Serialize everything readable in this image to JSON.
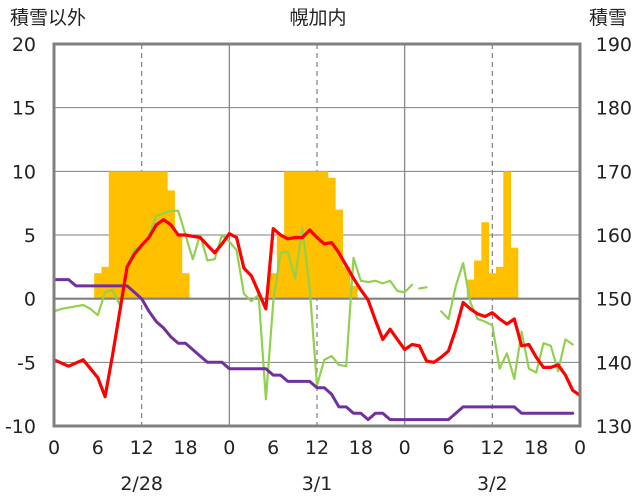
{
  "chart_data": {
    "type": "bar+line",
    "title": "幌加内",
    "ylabel_left": "積雪以外",
    "ylabel_right": "積雪",
    "y_left_range": [
      -10,
      20
    ],
    "y_left_ticks": [
      "20",
      "15",
      "10",
      "5",
      "0",
      "-5",
      "-10"
    ],
    "y_right_range": [
      130,
      190
    ],
    "y_right_ticks": [
      "190",
      "180",
      "170",
      "160",
      "150",
      "140",
      "130"
    ],
    "x_range_hours": [
      0,
      72
    ],
    "x_tick_labels": [
      "0",
      "6",
      "12",
      "18",
      "0",
      "6",
      "12",
      "18",
      "0",
      "6",
      "12",
      "18",
      "0"
    ],
    "date_labels": [
      "2/28",
      "3/1",
      "3/2"
    ],
    "grid": true,
    "colors": {
      "snow_depth_bar": "#FFC000",
      "temperature_line": "#FF0000",
      "green_line": "#92D050",
      "purple_line": "#7030A0",
      "axis": "#808080",
      "grid": "#808080"
    },
    "snow_depth_bars": {
      "x": [
        6,
        7,
        8,
        9,
        10,
        11,
        12,
        13,
        14,
        15,
        16,
        17,
        18,
        30,
        31,
        32,
        33,
        34,
        35,
        36,
        37,
        38,
        39,
        40,
        41,
        57,
        58,
        59,
        60,
        61,
        62,
        63
      ],
      "values": [
        154,
        155,
        170,
        170,
        170,
        170,
        170,
        170,
        170,
        170,
        167,
        160,
        154,
        154,
        160,
        170,
        170,
        170,
        170,
        170,
        170,
        169,
        164,
        155,
        152,
        153,
        156,
        162,
        154,
        155,
        170,
        158
      ]
    },
    "temperature": {
      "x": [
        0,
        2,
        4,
        5,
        6,
        7,
        8,
        9,
        10,
        11,
        12,
        13,
        14,
        15,
        16,
        17,
        18,
        19,
        20,
        21,
        22,
        23,
        24,
        25,
        26,
        27,
        28,
        29,
        30,
        31,
        32,
        33,
        34,
        35,
        36,
        37,
        38,
        39,
        40,
        41,
        42,
        43,
        44,
        45,
        46,
        47,
        48,
        49,
        50,
        51,
        52,
        53,
        54,
        55,
        56,
        57,
        58,
        59,
        60,
        61,
        62,
        63,
        64,
        65,
        66,
        67,
        68,
        69,
        70,
        71,
        72
      ],
      "values": [
        -4.8,
        -5.3,
        -4.8,
        -5.5,
        -6.2,
        -7.7,
        -4.5,
        -1,
        2.5,
        3.5,
        4.2,
        4.8,
        5.8,
        6.2,
        5.8,
        5,
        5,
        4.9,
        4.8,
        4.2,
        3.6,
        4.3,
        5.1,
        4.8,
        2.4,
        1.8,
        0.5,
        -0.8,
        5.5,
        5,
        4.7,
        4.8,
        4.8,
        5.4,
        4.8,
        4.3,
        4.4,
        3.6,
        2.6,
        1.6,
        0.7,
        -0.1,
        -1.7,
        -3.2,
        -2.4,
        -3.2,
        -4,
        -3.6,
        -3.7,
        -4.9,
        -5,
        -4.6,
        -4.1,
        -2.4,
        -0.3,
        -0.8,
        -1.2,
        -1.4,
        -1.1,
        -1.6,
        -2,
        -1.6,
        -3.7,
        -3.6,
        -4.6,
        -5.4,
        -5.4,
        -5.2,
        -6,
        -7.2,
        -7.6
      ]
    },
    "green_series": {
      "segments": [
        {
          "x": [
            0,
            1,
            2,
            3,
            4,
            5,
            6,
            7,
            8,
            9,
            10,
            11,
            12,
            13,
            14,
            15,
            16,
            17,
            18,
            19,
            20,
            21,
            22,
            23,
            24,
            25,
            26,
            27,
            28,
            29,
            30,
            31,
            32,
            33,
            34,
            35,
            36,
            37,
            38,
            39,
            40,
            41,
            42,
            43,
            44,
            45,
            46,
            47,
            48,
            49
          ],
          "values": [
            -1,
            -0.8,
            -0.7,
            -0.6,
            -0.5,
            -0.8,
            -1.3,
            0.5,
            0.7,
            -0.5,
            2.5,
            3.9,
            4,
            5,
            6.5,
            6.7,
            6.9,
            6.9,
            5,
            3.1,
            5,
            3,
            3.1,
            5,
            4.5,
            3.8,
            0.4,
            -0.2,
            0.3,
            -7.9,
            -0.3,
            3.6,
            3.7,
            1.6,
            5.5,
            0.8,
            -6.8,
            -4.8,
            -4.5,
            -5.2,
            -5.3,
            3.2,
            1.4,
            1.3,
            1.4,
            1.2,
            1.4,
            0.6,
            0.5,
            1.1
          ]
        },
        {
          "x": [
            50,
            51
          ],
          "values": [
            0.8,
            0.9
          ]
        },
        {
          "x": [
            53,
            54,
            55,
            56,
            57,
            58,
            59,
            60,
            61,
            62,
            63,
            64,
            65,
            66,
            67,
            68,
            69,
            70,
            71
          ],
          "values": [
            -1,
            -1.6,
            1,
            2.8,
            -0.3,
            -1.6,
            -1.8,
            -2.1,
            -5.5,
            -4.3,
            -6.3,
            -2.6,
            -5.5,
            -5.8,
            -3.5,
            -3.7,
            -5.7,
            -3.2,
            -3.6
          ]
        }
      ]
    },
    "purple_series": {
      "x": [
        0,
        1,
        2,
        3,
        4,
        5,
        6,
        7,
        8,
        9,
        10,
        11,
        12,
        13,
        14,
        15,
        16,
        17,
        18,
        19,
        20,
        21,
        22,
        23,
        24,
        25,
        26,
        27,
        28,
        29,
        30,
        31,
        32,
        33,
        34,
        35,
        36,
        37,
        38,
        39,
        40,
        41,
        42,
        43,
        44,
        45,
        46,
        47,
        48,
        49,
        50,
        51,
        52,
        53,
        54,
        55,
        56,
        57,
        58,
        59,
        60,
        61,
        62,
        63,
        64,
        65,
        66,
        67,
        68,
        69,
        70,
        71
      ],
      "values": [
        1.5,
        1.5,
        1.5,
        1,
        1,
        1,
        1,
        1,
        1,
        1,
        1,
        0.5,
        0,
        -1,
        -1.8,
        -2.3,
        -3,
        -3.5,
        -3.5,
        -4,
        -4.5,
        -5,
        -5,
        -5,
        -5.5,
        -5.5,
        -5.5,
        -5.5,
        -5.5,
        -5.5,
        -6,
        -6,
        -6.5,
        -6.5,
        -6.5,
        -6.5,
        -7,
        -7,
        -7.5,
        -8.5,
        -8.5,
        -9,
        -9,
        -9.5,
        -9,
        -9,
        -9.5,
        -9.5,
        -9.5,
        -9.5,
        -9.5,
        -9.5,
        -9.5,
        -9.5,
        -9.5,
        -9,
        -8.5,
        -8.5,
        -8.5,
        -8.5,
        -8.5,
        -8.5,
        -8.5,
        -8.5,
        -9,
        -9,
        -9,
        -9,
        -9,
        -9,
        -9,
        -9
      ]
    }
  }
}
